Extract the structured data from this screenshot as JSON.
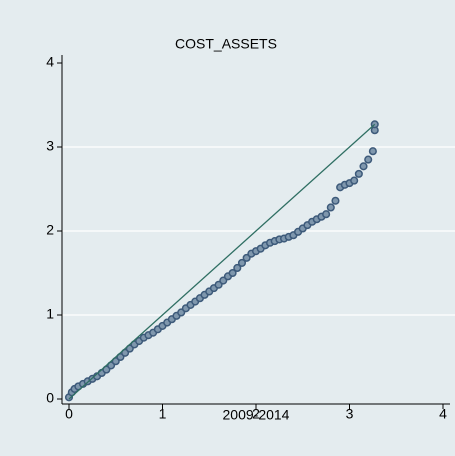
{
  "chart_data": {
    "type": "scatter",
    "title": "COST_ASSETS",
    "x_label": "2009-2014",
    "xlim": [
      0,
      4
    ],
    "ylim": [
      0,
      4
    ],
    "xticks": [
      0,
      1,
      2,
      3,
      4
    ],
    "yticks": [
      0,
      1,
      2,
      3,
      4
    ],
    "grid": true,
    "series": [
      {
        "kind": "points",
        "color": "#3d5a7a",
        "x": [
          0,
          0.03,
          0.06,
          0.1,
          0.15,
          0.2,
          0.25,
          0.3,
          0.35,
          0.4,
          0.45,
          0.5,
          0.55,
          0.6,
          0.65,
          0.7,
          0.75,
          0.8,
          0.85,
          0.9,
          0.95,
          1.0,
          1.05,
          1.1,
          1.15,
          1.2,
          1.25,
          1.3,
          1.35,
          1.4,
          1.45,
          1.5,
          1.55,
          1.6,
          1.65,
          1.7,
          1.75,
          1.8,
          1.85,
          1.9,
          1.95,
          2.0,
          2.05,
          2.1,
          2.15,
          2.2,
          2.25,
          2.3,
          2.35,
          2.4,
          2.45,
          2.5,
          2.55,
          2.6,
          2.65,
          2.7,
          2.75,
          2.8,
          2.85,
          2.9,
          2.95,
          3.0,
          3.05,
          3.1,
          3.15,
          3.2,
          3.25,
          3.27,
          3.27
        ],
        "values": [
          0.02,
          0.08,
          0.12,
          0.15,
          0.18,
          0.21,
          0.24,
          0.27,
          0.31,
          0.35,
          0.4,
          0.45,
          0.5,
          0.55,
          0.6,
          0.65,
          0.69,
          0.73,
          0.76,
          0.79,
          0.83,
          0.87,
          0.91,
          0.95,
          0.99,
          1.03,
          1.08,
          1.12,
          1.16,
          1.2,
          1.24,
          1.28,
          1.32,
          1.36,
          1.41,
          1.46,
          1.5,
          1.56,
          1.62,
          1.68,
          1.73,
          1.76,
          1.79,
          1.83,
          1.86,
          1.88,
          1.9,
          1.91,
          1.93,
          1.95,
          1.99,
          2.03,
          2.07,
          2.11,
          2.14,
          2.17,
          2.2,
          2.28,
          2.36,
          2.52,
          2.55,
          2.57,
          2.6,
          2.68,
          2.77,
          2.85,
          2.95,
          3.2,
          3.27
        ]
      },
      {
        "kind": "line",
        "color": "#2f6f63",
        "x": [
          0,
          3.27
        ],
        "values": [
          0,
          3.27
        ]
      }
    ]
  }
}
